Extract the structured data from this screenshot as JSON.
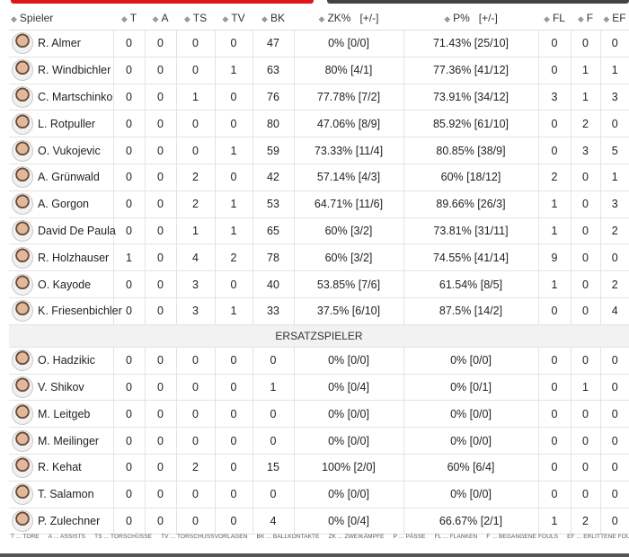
{
  "columns": [
    {
      "key": "spieler",
      "label": "Spieler"
    },
    {
      "key": "t",
      "label": "T"
    },
    {
      "key": "a",
      "label": "A"
    },
    {
      "key": "ts",
      "label": "TS"
    },
    {
      "key": "tv",
      "label": "TV"
    },
    {
      "key": "bk",
      "label": "BK"
    },
    {
      "key": "zk",
      "label": "ZK%   [+/-]"
    },
    {
      "key": "p",
      "label": "P%   [+/-]"
    },
    {
      "key": "fl",
      "label": "FL"
    },
    {
      "key": "f",
      "label": "F"
    },
    {
      "key": "ef",
      "label": "EF"
    }
  ],
  "starters": [
    {
      "name": "R. Almer",
      "t": "0",
      "a": "0",
      "ts": "0",
      "tv": "0",
      "bk": "47",
      "zk": "0% [0/0]",
      "p": "71.43% [25/10]",
      "fl": "0",
      "f": "0",
      "ef": "0"
    },
    {
      "name": "R. Windbichler",
      "t": "0",
      "a": "0",
      "ts": "0",
      "tv": "1",
      "bk": "63",
      "zk": "80% [4/1]",
      "p": "77.36% [41/12]",
      "fl": "0",
      "f": "1",
      "ef": "1"
    },
    {
      "name": "C. Martschinko",
      "t": "0",
      "a": "0",
      "ts": "1",
      "tv": "0",
      "bk": "76",
      "zk": "77.78% [7/2]",
      "p": "73.91% [34/12]",
      "fl": "3",
      "f": "1",
      "ef": "3"
    },
    {
      "name": "L. Rotpuller",
      "t": "0",
      "a": "0",
      "ts": "0",
      "tv": "0",
      "bk": "80",
      "zk": "47.06% [8/9]",
      "p": "85.92% [61/10]",
      "fl": "0",
      "f": "2",
      "ef": "0"
    },
    {
      "name": "O. Vukojevic",
      "t": "0",
      "a": "0",
      "ts": "0",
      "tv": "1",
      "bk": "59",
      "zk": "73.33% [11/4]",
      "p": "80.85% [38/9]",
      "fl": "0",
      "f": "3",
      "ef": "5"
    },
    {
      "name": "A. Grünwald",
      "t": "0",
      "a": "0",
      "ts": "2",
      "tv": "0",
      "bk": "42",
      "zk": "57.14% [4/3]",
      "p": "60% [18/12]",
      "fl": "2",
      "f": "0",
      "ef": "1"
    },
    {
      "name": "A. Gorgon",
      "t": "0",
      "a": "0",
      "ts": "2",
      "tv": "1",
      "bk": "53",
      "zk": "64.71% [11/6]",
      "p": "89.66% [26/3]",
      "fl": "1",
      "f": "0",
      "ef": "3"
    },
    {
      "name": "David De Paula",
      "t": "0",
      "a": "0",
      "ts": "1",
      "tv": "1",
      "bk": "65",
      "zk": "60% [3/2]",
      "p": "73.81% [31/11]",
      "fl": "1",
      "f": "0",
      "ef": "2"
    },
    {
      "name": "R. Holzhauser",
      "t": "1",
      "a": "0",
      "ts": "4",
      "tv": "2",
      "bk": "78",
      "zk": "60% [3/2]",
      "p": "74.55% [41/14]",
      "fl": "9",
      "f": "0",
      "ef": "0"
    },
    {
      "name": "O. Kayode",
      "t": "0",
      "a": "0",
      "ts": "3",
      "tv": "0",
      "bk": "40",
      "zk": "53.85% [7/6]",
      "p": "61.54% [8/5]",
      "fl": "1",
      "f": "0",
      "ef": "2"
    },
    {
      "name": "K. Friesenbichler",
      "t": "0",
      "a": "0",
      "ts": "3",
      "tv": "1",
      "bk": "33",
      "zk": "37.5% [6/10]",
      "p": "87.5% [14/2]",
      "fl": "0",
      "f": "0",
      "ef": "4"
    }
  ],
  "subs_label": "ERSATZSPIELER",
  "subs": [
    {
      "name": "O. Hadzikic",
      "t": "0",
      "a": "0",
      "ts": "0",
      "tv": "0",
      "bk": "0",
      "zk": "0% [0/0]",
      "p": "0% [0/0]",
      "fl": "0",
      "f": "0",
      "ef": "0"
    },
    {
      "name": "V. Shikov",
      "t": "0",
      "a": "0",
      "ts": "0",
      "tv": "0",
      "bk": "1",
      "zk": "0% [0/4]",
      "p": "0% [0/1]",
      "fl": "0",
      "f": "1",
      "ef": "0"
    },
    {
      "name": "M. Leitgeb",
      "t": "0",
      "a": "0",
      "ts": "0",
      "tv": "0",
      "bk": "0",
      "zk": "0% [0/0]",
      "p": "0% [0/0]",
      "fl": "0",
      "f": "0",
      "ef": "0"
    },
    {
      "name": "M. Meilinger",
      "t": "0",
      "a": "0",
      "ts": "0",
      "tv": "0",
      "bk": "0",
      "zk": "0% [0/0]",
      "p": "0% [0/0]",
      "fl": "0",
      "f": "0",
      "ef": "0"
    },
    {
      "name": "R. Kehat",
      "t": "0",
      "a": "0",
      "ts": "2",
      "tv": "0",
      "bk": "15",
      "zk": "100% [2/0]",
      "p": "60% [6/4]",
      "fl": "0",
      "f": "0",
      "ef": "0"
    },
    {
      "name": "T. Salamon",
      "t": "0",
      "a": "0",
      "ts": "0",
      "tv": "0",
      "bk": "0",
      "zk": "0% [0/0]",
      "p": "0% [0/0]",
      "fl": "0",
      "f": "0",
      "ef": "0"
    },
    {
      "name": "P. Zulechner",
      "t": "0",
      "a": "0",
      "ts": "0",
      "tv": "0",
      "bk": "4",
      "zk": "0% [0/4]",
      "p": "66.67% [2/1]",
      "fl": "1",
      "f": "2",
      "ef": "0"
    }
  ],
  "legend": [
    "T ... TORE",
    "A ... ASSISTS",
    "TS ... TORSCHÜSSE",
    "TV ... TORSCHUSSVORLAGEN",
    "BK ... BALLKONTAKTE",
    "ZK ... ZWEIKÄMPFE",
    "P ... PÄSSE",
    "FL ... FLANKEN",
    "F ... BEGANGENE FOULS",
    "EF ... ERLITTENE FOULS"
  ],
  "colors": {
    "accent": "#e0141b",
    "bar_dark": "#444444",
    "sort_icon": "#999999"
  },
  "icons": {
    "sort": "sort-arrows-icon",
    "avatar": "player-avatar"
  }
}
